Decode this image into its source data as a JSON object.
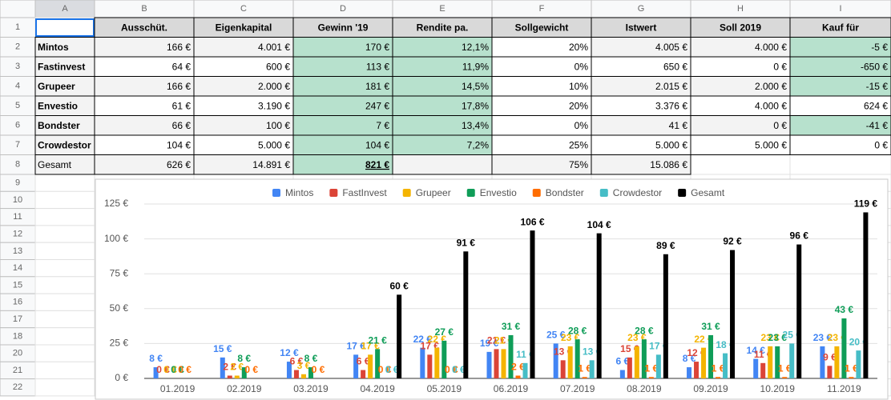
{
  "sheet": {
    "column_letters": [
      "A",
      "B",
      "C",
      "D",
      "E",
      "F",
      "G",
      "H",
      "I"
    ],
    "row_numbers": [
      1,
      2,
      3,
      4,
      5,
      6,
      7,
      8,
      9,
      10,
      11,
      12,
      13,
      14,
      15,
      16,
      17,
      18,
      20,
      21,
      22
    ],
    "table": {
      "header": [
        "Ausschüt.",
        "Eigenkapital",
        "Gewinn '19",
        "Rendite pa.",
        "Sollgewicht",
        "Istwert",
        "Soll 2019",
        "Kauf für"
      ],
      "rows": [
        [
          "Mintos",
          "166 €",
          "4.001 €",
          "170 €",
          "12,1%",
          "20%",
          "4.005 €",
          "4.000 €",
          "-5 €"
        ],
        [
          "Fastinvest",
          "64 €",
          "600 €",
          "113 €",
          "11,9%",
          "0%",
          "650 €",
          "0 €",
          "-650 €"
        ],
        [
          "Grupeer",
          "166 €",
          "2.000 €",
          "181 €",
          "14,5%",
          "10%",
          "2.015 €",
          "2.000 €",
          "-15 €"
        ],
        [
          "Envestio",
          "61 €",
          "3.190 €",
          "247 €",
          "17,8%",
          "20%",
          "3.376 €",
          "4.000 €",
          "624 €"
        ],
        [
          "Bondster",
          "66 €",
          "100 €",
          "7 €",
          "13,4%",
          "0%",
          "41 €",
          "0 €",
          "-41 €"
        ],
        [
          "Crowdestor",
          "104 €",
          "5.000 €",
          "104 €",
          "7,2%",
          "25%",
          "5.000 €",
          "5.000 €",
          "0 €"
        ],
        [
          "Gesamt",
          "626 €",
          "14.891 €",
          "821 €",
          null,
          "75%",
          "15.086 €",
          null,
          null
        ]
      ]
    }
  },
  "chart_data": {
    "type": "bar",
    "categories": [
      "01.2019",
      "02.2019",
      "03.2019",
      "04.2019",
      "05.2019",
      "06.2019",
      "07.2019",
      "08.2019",
      "09.2019",
      "10.2019",
      "11.2019"
    ],
    "ylim": [
      0,
      125
    ],
    "yticks": [
      {
        "value": 0,
        "label": "0 €"
      },
      {
        "value": 25,
        "label": "25 €"
      },
      {
        "value": 50,
        "label": "50 €"
      },
      {
        "value": 75,
        "label": "75 €"
      },
      {
        "value": 100,
        "label": "100 €"
      },
      {
        "value": 125,
        "label": "125 €"
      }
    ],
    "legend": "top",
    "series": [
      {
        "name": "Mintos",
        "color": "#4285f4",
        "values": [
          8,
          15,
          12,
          17,
          22,
          19,
          25,
          6,
          8,
          14,
          23
        ],
        "value_labels": [
          "8 €",
          "15 €",
          "12 €",
          "17 €",
          "22 €",
          "19 €",
          "25 €",
          "6 €",
          "8 €",
          "14 €",
          "23 €"
        ]
      },
      {
        "name": "FastInvest",
        "color": "#db4437",
        "values": [
          0,
          2,
          6,
          6,
          17,
          21,
          13,
          15,
          12,
          11,
          9
        ],
        "value_labels": [
          "0 €",
          "2 €",
          "6 €",
          "6 €",
          "17 €",
          "21 €",
          "13 €",
          "15 €",
          "12 €",
          "11 €",
          "9 €"
        ]
      },
      {
        "name": "Grupeer",
        "color": "#f4b400",
        "values": [
          0,
          2,
          3,
          17,
          22,
          21,
          23,
          23,
          22,
          23,
          23
        ],
        "value_labels": [
          "0 €",
          "2 €",
          "3 €",
          "17 €",
          "22 €",
          "21 €",
          "23 €",
          "23 €",
          "22 €",
          "23 €",
          "23 €"
        ]
      },
      {
        "name": "Envestio",
        "color": "#0f9d58",
        "values": [
          0,
          8,
          8,
          21,
          27,
          31,
          28,
          28,
          31,
          23,
          43
        ],
        "value_labels": [
          "0 €",
          "8 €",
          "8 €",
          "21 €",
          "27 €",
          "31 €",
          "28 €",
          "28 €",
          "31 €",
          "23 €",
          "43 €"
        ]
      },
      {
        "name": "Bondster",
        "color": "#ff6d00",
        "values": [
          0,
          0,
          0,
          0,
          0,
          2,
          1,
          1,
          1,
          1,
          1
        ],
        "value_labels": [
          "0 €",
          "0 €",
          "0 €",
          "0 €",
          "0 €",
          "2 €",
          "1 €",
          "1 €",
          "1 €",
          "1 €",
          "1 €"
        ]
      },
      {
        "name": "Crowdestor",
        "color": "#46bdc6",
        "values": [
          null,
          null,
          null,
          0,
          0,
          11,
          13,
          17,
          18,
          25,
          20
        ],
        "value_labels": [
          null,
          null,
          null,
          "0 €",
          "0 €",
          "11 €",
          "13 €",
          "17 €",
          "18 €",
          "25 €",
          "20 €"
        ]
      },
      {
        "name": "Gesamt",
        "color": "#000000",
        "values": [
          null,
          null,
          null,
          60,
          91,
          106,
          104,
          89,
          92,
          96,
          119
        ],
        "value_labels": [
          null,
          null,
          null,
          "60 €",
          "91 €",
          "106 €",
          "104 €",
          "89 €",
          "92 €",
          "96 €",
          "119 €"
        ]
      }
    ]
  }
}
